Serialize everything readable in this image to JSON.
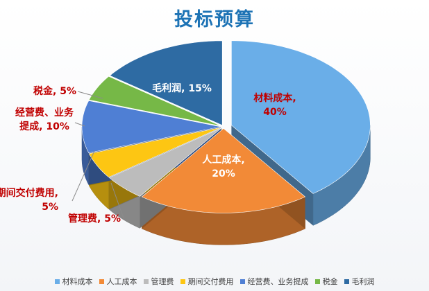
{
  "chart_data": {
    "type": "pie",
    "title": "投标预算",
    "categories": [
      "材料成本",
      "人工成本",
      "管理费",
      "期间交付费用",
      "经营费、业务提成",
      "税金",
      "毛利润"
    ],
    "values": [
      40,
      20,
      5,
      5,
      10,
      5,
      15
    ],
    "value_format": "percent",
    "data_labels": [
      [
        "材料成本,",
        "40%"
      ],
      [
        "人工成本,",
        "20%"
      ],
      [
        "管理费, 5%"
      ],
      [
        "期间交付费用,",
        "5%"
      ],
      [
        "经营费、业务",
        "提成, 10%"
      ],
      [
        "税金, 5%"
      ],
      [
        "毛利润, 15%"
      ]
    ],
    "colors": [
      "#6aaee8",
      "#f28a37",
      "#bcbcbc",
      "#fdc613",
      "#4f7fd4",
      "#76b847",
      "#2e6ba3"
    ],
    "label_colors": [
      "#c00000",
      "#ffffff",
      "#c00000",
      "#c00000",
      "#c00000",
      "#c00000",
      "#ffffff"
    ],
    "style": "3d-exploded-pie",
    "legend_position": "bottom"
  }
}
